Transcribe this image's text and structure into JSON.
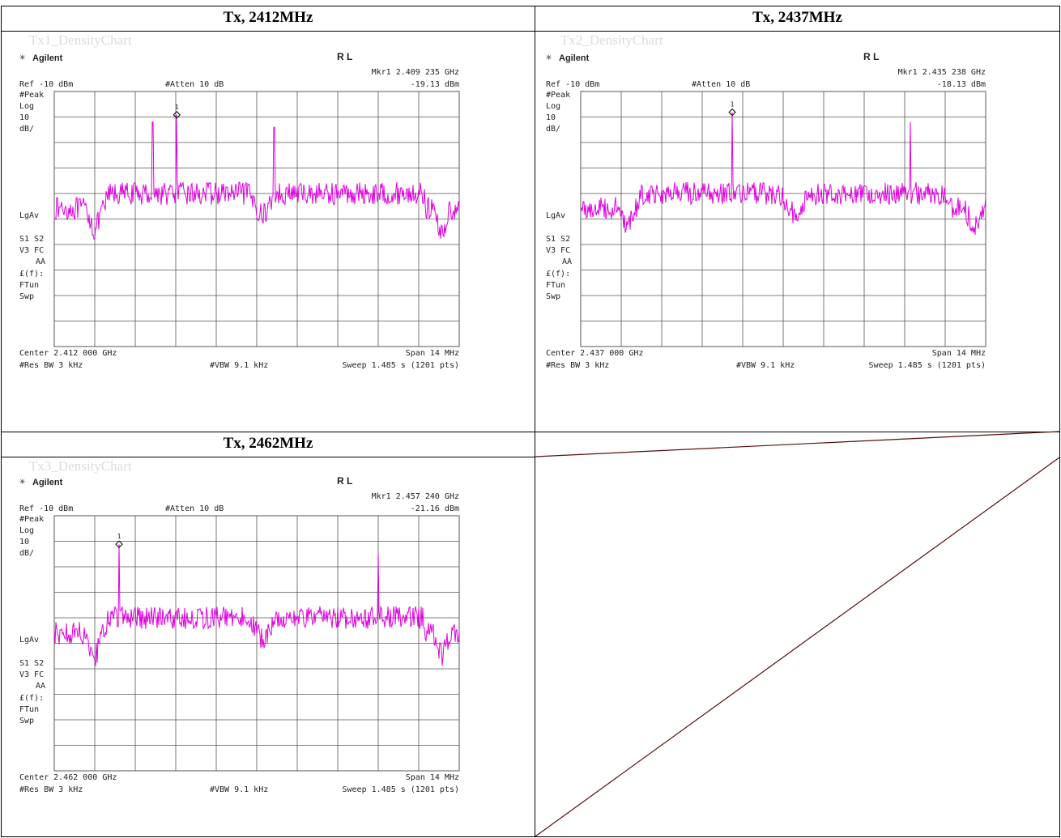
{
  "colors": {
    "trace": "#e000e0",
    "grid": "#555555",
    "border": "#000000",
    "diag": "#5a0c0c"
  },
  "cells": [
    {
      "title": "Tx, 2412MHz",
      "subtitle": "Tx1_DensityChart"
    },
    {
      "title": "Tx, 2437MHz",
      "subtitle": "Tx2_DensityChart"
    },
    {
      "title": "Tx, 2462MHz",
      "subtitle": "Tx3_DensityChart"
    }
  ],
  "chart_data": [
    {
      "type": "line",
      "brand": "Agilent",
      "rl": "R L",
      "marker_label": "Mkr1  2.409 235 GHz",
      "marker_level": "-19.13 dBm",
      "ref": "Ref -10 dBm",
      "atten": "#Atten 10 dB",
      "left_labels": [
        "#Peak",
        "Log",
        "10",
        "dB/",
        "LgAv",
        "S1  S2",
        "V3  FC",
        "AA",
        "£(f):",
        "FTun",
        "Swp"
      ],
      "center": "Center 2.412 000 GHz",
      "span": "Span 14 MHz",
      "res_bw": "#Res BW 3 kHz",
      "vbw": "#VBW 9.1 kHz",
      "sweep": "Sweep 1.485 s (1201 pts)",
      "marker": {
        "x_mhz": 2409.235,
        "y_dbm": -19.13
      },
      "x_range_mhz": [
        2405,
        2419
      ],
      "y_range_dbm": [
        -110,
        -10
      ],
      "floor_dbm": -50,
      "edge_dbm": -56,
      "spikes": [
        {
          "x_mhz": 2408.4,
          "y_dbm": -22
        },
        {
          "x_mhz": 2409.235,
          "y_dbm": -19.13
        },
        {
          "x_mhz": 2412.6,
          "y_dbm": -24
        }
      ],
      "notches": [
        {
          "x_mhz": 2406.4,
          "y_dbm": -65
        },
        {
          "x_mhz": 2412.2,
          "y_dbm": -59
        },
        {
          "x_mhz": 2418.4,
          "y_dbm": -66
        }
      ]
    },
    {
      "type": "line",
      "brand": "Agilent",
      "rl": "R L",
      "marker_label": "Mkr1  2.435 238 GHz",
      "marker_level": "-18.13 dBm",
      "ref": "Ref -10 dBm",
      "atten": "#Atten 10 dB",
      "left_labels": [
        "#Peak",
        "Log",
        "10",
        "dB/",
        "LgAv",
        "S1  S2",
        "V3  FC",
        "AA",
        "£(f):",
        "FTun",
        "Swp"
      ],
      "center": "Center 2.437 000 GHz",
      "span": "Span 14 MHz",
      "res_bw": "#Res BW 3 kHz",
      "vbw": "#VBW 9.1 kHz",
      "sweep": "Sweep 1.485 s (1201 pts)",
      "marker": {
        "x_mhz": 2435.238,
        "y_dbm": -18.13
      },
      "x_range_mhz": [
        2430,
        2444
      ],
      "y_range_dbm": [
        -110,
        -10
      ],
      "floor_dbm": -50,
      "edge_dbm": -56,
      "spikes": [
        {
          "x_mhz": 2435.238,
          "y_dbm": -18.13
        },
        {
          "x_mhz": 2441.4,
          "y_dbm": -22
        }
      ],
      "notches": [
        {
          "x_mhz": 2431.6,
          "y_dbm": -65
        },
        {
          "x_mhz": 2437.4,
          "y_dbm": -59
        },
        {
          "x_mhz": 2443.6,
          "y_dbm": -65
        }
      ]
    },
    {
      "type": "line",
      "brand": "Agilent",
      "rl": "R L",
      "marker_label": "Mkr1  2.457 240 GHz",
      "marker_level": "-21.16 dBm",
      "ref": "Ref -10 dBm",
      "atten": "#Atten 10 dB",
      "left_labels": [
        "#Peak",
        "Log",
        "10",
        "dB/",
        "LgAv",
        "S1  S2",
        "V3  FC",
        "AA",
        "£(f):",
        "FTun",
        "Swp"
      ],
      "center": "Center 2.462 000 GHz",
      "span": "Span 14 MHz",
      "res_bw": "#Res BW 3 kHz",
      "vbw": "#VBW 9.1 kHz",
      "sweep": "Sweep 1.485 s (1201 pts)",
      "marker": {
        "x_mhz": 2457.24,
        "y_dbm": -21.16
      },
      "x_range_mhz": [
        2455,
        2469
      ],
      "y_range_dbm": [
        -110,
        -10
      ],
      "floor_dbm": -50,
      "edge_dbm": -56,
      "spikes": [
        {
          "x_mhz": 2457.24,
          "y_dbm": -21.16
        },
        {
          "x_mhz": 2466.2,
          "y_dbm": -25
        }
      ],
      "notches": [
        {
          "x_mhz": 2456.4,
          "y_dbm": -66
        },
        {
          "x_mhz": 2462.2,
          "y_dbm": -59
        },
        {
          "x_mhz": 2468.4,
          "y_dbm": -65
        }
      ]
    }
  ]
}
